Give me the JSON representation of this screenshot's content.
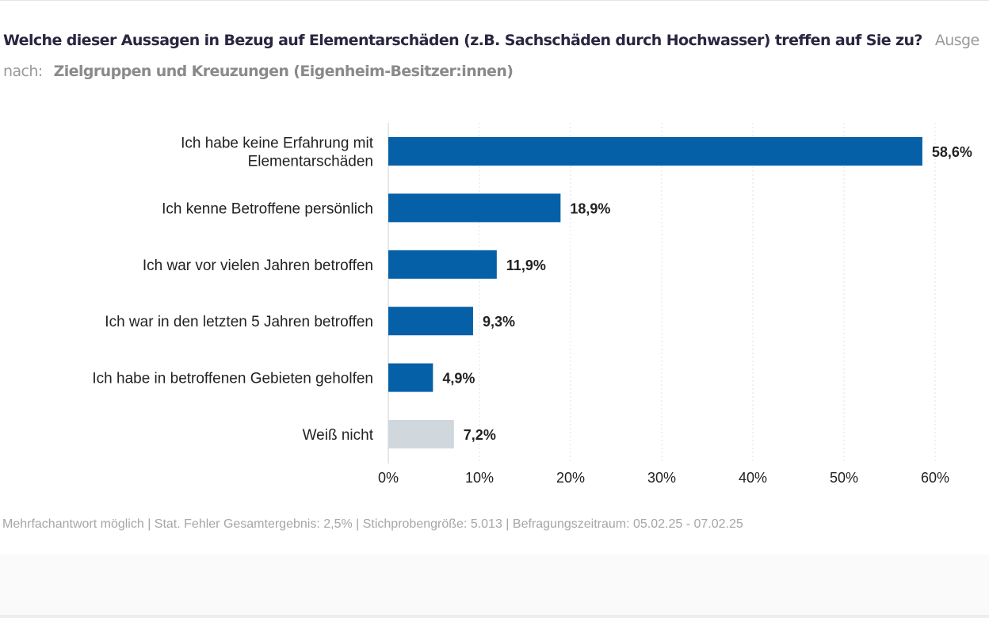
{
  "header": {
    "question": "Welche dieser Aussagen in Bezug auf Elementarschäden (z.B. Sachschäden durch Hochwasser) treffen auf Sie zu?",
    "truncated_label": "Ausge",
    "by_label": "nach:",
    "group": "Zielgruppen und Kreuzungen (Eigenheim-Besitzer:innen)"
  },
  "chart_data": {
    "type": "bar",
    "orientation": "horizontal",
    "categories": [
      [
        "Ich habe keine Erfahrung mit",
        "Elementarschäden"
      ],
      [
        "Ich kenne Betroffene persönlich"
      ],
      [
        "Ich war vor vielen Jahren betroffen"
      ],
      [
        "Ich war in den letzten 5 Jahren betroffen"
      ],
      [
        "Ich habe in betroffenen Gebieten geholfen"
      ],
      [
        "Weiß nicht"
      ]
    ],
    "values": [
      58.6,
      18.9,
      11.9,
      9.3,
      4.9,
      7.2
    ],
    "value_labels": [
      "58,6%",
      "18,9%",
      "11,9%",
      "9,3%",
      "4,9%",
      "7,2%"
    ],
    "colors": [
      "#0560a8",
      "#0560a8",
      "#0560a8",
      "#0560a8",
      "#0560a8",
      "#d0d8de"
    ],
    "xlim": [
      0,
      60
    ],
    "xticks": [
      "0%",
      "10%",
      "20%",
      "30%",
      "40%",
      "50%",
      "60%"
    ],
    "grid": true
  },
  "footer": "Mehrfachantwort möglich | Stat. Fehler Gesamtergebnis: 2,5% | Stichprobengröße: 5.013 | Befragungszeitraum: 05.02.25 - 07.02.25"
}
